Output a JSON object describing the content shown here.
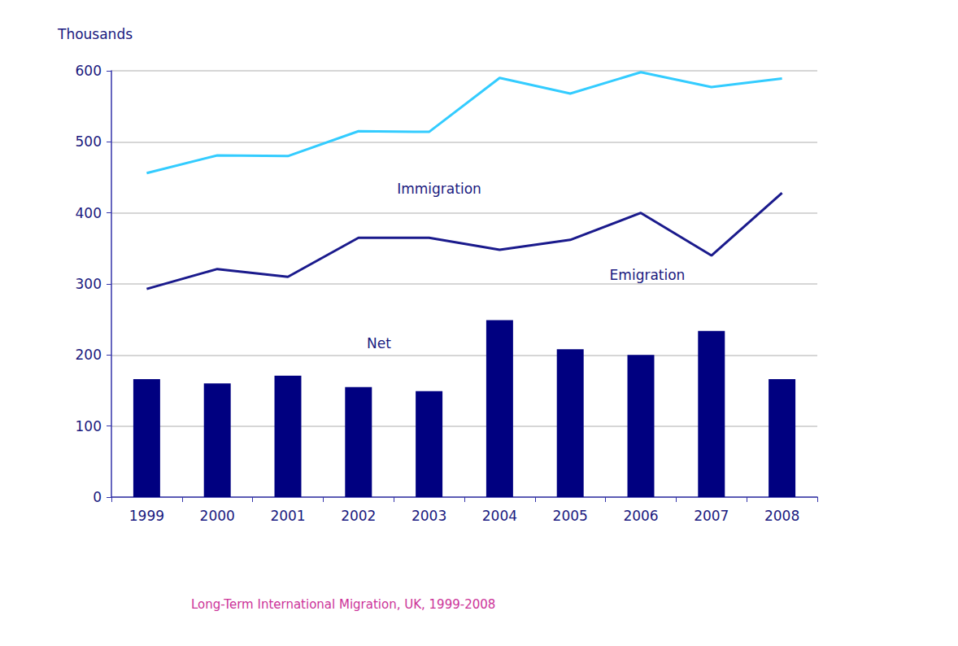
{
  "chart_data": {
    "type": "line",
    "title": "Long-Term International Migration, UK, 1999-2008",
    "ylabel": "Thousands",
    "categories": [
      "1999",
      "2000",
      "2001",
      "2002",
      "2003",
      "2004",
      "2005",
      "2006",
      "2007",
      "2008"
    ],
    "series": [
      {
        "name": "Immigration",
        "type": "line",
        "color": "#33ccff",
        "values": [
          456,
          481,
          480,
          515,
          514,
          590,
          568,
          598,
          577,
          589
        ]
      },
      {
        "name": "Emigration",
        "type": "line",
        "color": "#1a1a8c",
        "values": [
          293,
          321,
          310,
          365,
          365,
          348,
          362,
          400,
          340,
          428
        ]
      },
      {
        "name": "Net",
        "type": "bar",
        "color": "#000080",
        "values": [
          166,
          160,
          171,
          155,
          149,
          249,
          208,
          200,
          234,
          166
        ]
      }
    ],
    "ylim": [
      0,
      600
    ],
    "yticks": [
      0,
      100,
      200,
      300,
      400,
      500,
      600
    ],
    "grid": true
  }
}
